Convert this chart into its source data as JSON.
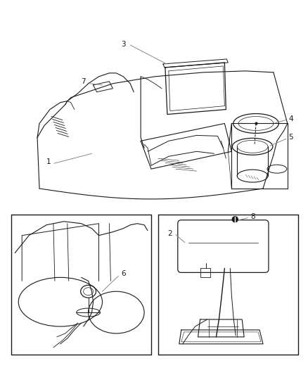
{
  "background": "#ffffff",
  "line_color": "#1a1a1a",
  "gray_line": "#888888",
  "fig_w": 4.38,
  "fig_h": 5.33,
  "dpi": 100
}
